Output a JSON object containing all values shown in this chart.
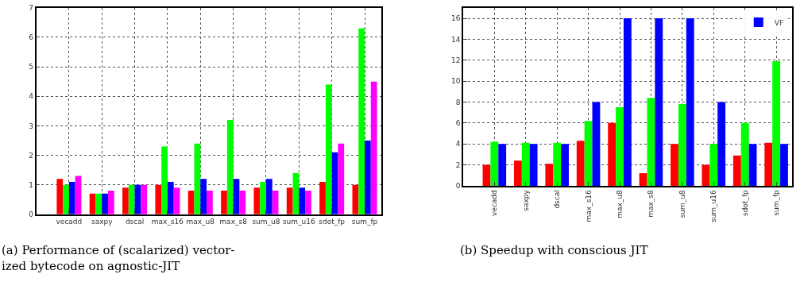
{
  "chart_data": [
    {
      "type": "bar",
      "categories": [
        "vecadd",
        "saxpy",
        "dscal",
        "max_s16",
        "max_u8",
        "max_s8",
        "sum_u8",
        "sum_u16",
        "sdot_fp",
        "sum_fp"
      ],
      "series": [
        {
          "color": "#ff0000",
          "values": [
            1.2,
            0.7,
            0.9,
            1.0,
            0.8,
            0.8,
            0.9,
            0.9,
            1.1,
            1.0
          ]
        },
        {
          "color": "#00ff00",
          "values": [
            1.0,
            0.7,
            1.0,
            2.3,
            2.4,
            3.2,
            1.1,
            1.4,
            4.4,
            6.3
          ]
        },
        {
          "color": "#0000ff",
          "values": [
            1.1,
            0.7,
            1.0,
            1.1,
            1.2,
            1.2,
            1.2,
            0.9,
            2.1,
            2.5
          ]
        },
        {
          "color": "#ff00ff",
          "values": [
            1.3,
            0.8,
            1.0,
            0.9,
            0.8,
            0.8,
            0.8,
            0.8,
            2.4,
            4.5
          ]
        }
      ],
      "ylim": [
        0,
        7
      ],
      "yticks": [
        0,
        1,
        2,
        3,
        4,
        5,
        6,
        7
      ],
      "grid": true,
      "legend": false,
      "annotations": [
        "(a) Performance of (scalarized) vector-\nized bytecode on agnostic-JIT"
      ]
    },
    {
      "type": "bar",
      "categories": [
        "vecadd",
        "saxpy",
        "dscal",
        "max_s16",
        "max_u8",
        "max_s8",
        "sum_u8",
        "sum_u16",
        "sdot_fp",
        "sum_fp"
      ],
      "series": [
        {
          "color": "#ff0000",
          "values": [
            2,
            2.4,
            2.1,
            4.3,
            6,
            1.2,
            4,
            2,
            2.9,
            4.1
          ]
        },
        {
          "color": "#00ff00",
          "values": [
            4.2,
            4.1,
            4.1,
            6.2,
            7.5,
            8.4,
            7.8,
            4,
            6,
            11.9
          ]
        },
        {
          "name": "VF",
          "color": "#0000ff",
          "values": [
            4,
            4,
            4,
            8,
            16,
            16,
            16,
            8,
            4,
            4
          ]
        }
      ],
      "ylim": [
        0,
        17
      ],
      "yticks": [
        0,
        2,
        4,
        6,
        8,
        10,
        12,
        14,
        16
      ],
      "grid": true,
      "legend": "top right",
      "annotations": [
        "(b) Speedup with conscious JIT"
      ]
    }
  ]
}
